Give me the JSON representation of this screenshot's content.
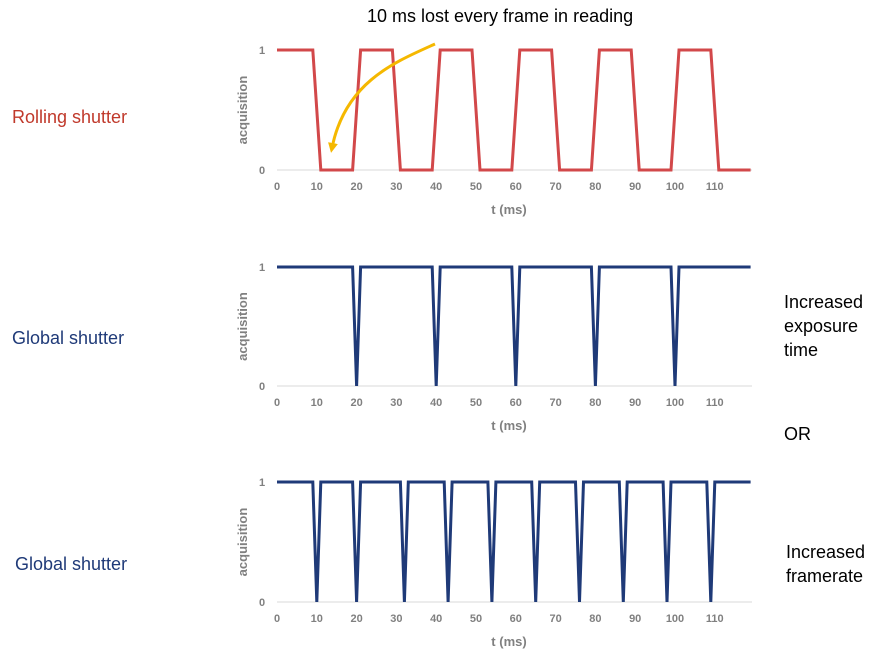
{
  "annotation": {
    "text": "10 ms lost every frame in reading"
  },
  "rows": [
    {
      "label": "Rolling shutter"
    },
    {
      "label": "Global shutter"
    },
    {
      "label": "Global shutter"
    }
  ],
  "notes": {
    "exposure": [
      "Increased",
      "exposure",
      "time"
    ],
    "or": "OR",
    "framerate": [
      "Increased",
      "framerate"
    ]
  },
  "colors": {
    "rolling": "#d2484a",
    "global": "#1f3a78",
    "arrow": "#f5b800",
    "tick": "#808080"
  },
  "chart_data": [
    {
      "type": "line",
      "title": "",
      "xlabel": "t (ms)",
      "ylabel": "acquisition",
      "xticks": [
        "0",
        "10",
        "20",
        "30",
        "40",
        "50",
        "60",
        "70",
        "80",
        "90",
        "100",
        "110"
      ],
      "yticks": [
        "0",
        "1"
      ],
      "xlim": [
        0,
        119
      ],
      "ylim": [
        0,
        1
      ],
      "series": [
        {
          "x": [
            0,
            9,
            11,
            19,
            21,
            29,
            31,
            39,
            41,
            49,
            51,
            59,
            61,
            69,
            71,
            79,
            81,
            89,
            91,
            99,
            101,
            109,
            111,
            119
          ],
          "y": [
            1,
            1,
            0,
            0,
            1,
            1,
            0,
            0,
            1,
            1,
            0,
            0,
            1,
            1,
            0,
            0,
            1,
            1,
            0,
            0,
            1,
            1,
            0,
            0
          ]
        }
      ]
    },
    {
      "type": "line",
      "title": "",
      "xlabel": "t (ms)",
      "ylabel": "acquisition",
      "xticks": [
        "0",
        "10",
        "20",
        "30",
        "40",
        "50",
        "60",
        "70",
        "80",
        "90",
        "100",
        "110"
      ],
      "yticks": [
        "0",
        "1"
      ],
      "xlim": [
        0,
        119
      ],
      "ylim": [
        0,
        1
      ],
      "series": [
        {
          "x": [
            0,
            19,
            20,
            21,
            39,
            40,
            41,
            59,
            60,
            61,
            79,
            80,
            81,
            99,
            100,
            101,
            119
          ],
          "y": [
            1,
            1,
            0,
            1,
            1,
            0,
            1,
            1,
            0,
            1,
            1,
            0,
            1,
            1,
            0,
            1,
            1
          ]
        }
      ]
    },
    {
      "type": "line",
      "title": "",
      "xlabel": "t (ms)",
      "ylabel": "acquisition",
      "xticks": [
        "0",
        "10",
        "20",
        "30",
        "40",
        "50",
        "60",
        "70",
        "80",
        "90",
        "100",
        "110"
      ],
      "yticks": [
        "0",
        "1"
      ],
      "xlim": [
        0,
        119
      ],
      "ylim": [
        0,
        1
      ],
      "series": [
        {
          "x": [
            0,
            9,
            10,
            11,
            19,
            20,
            21,
            31,
            32,
            33,
            42,
            43,
            44,
            53,
            54,
            55,
            64,
            65,
            66,
            75,
            76,
            77,
            86,
            87,
            88,
            97,
            98,
            99,
            108,
            109,
            110,
            119
          ],
          "y": [
            1,
            1,
            0,
            1,
            1,
            0,
            1,
            1,
            0,
            1,
            1,
            0,
            1,
            1,
            0,
            1,
            1,
            0,
            1,
            1,
            0,
            1,
            1,
            0,
            1,
            1,
            0,
            1,
            1,
            0,
            1,
            1
          ]
        }
      ]
    }
  ]
}
